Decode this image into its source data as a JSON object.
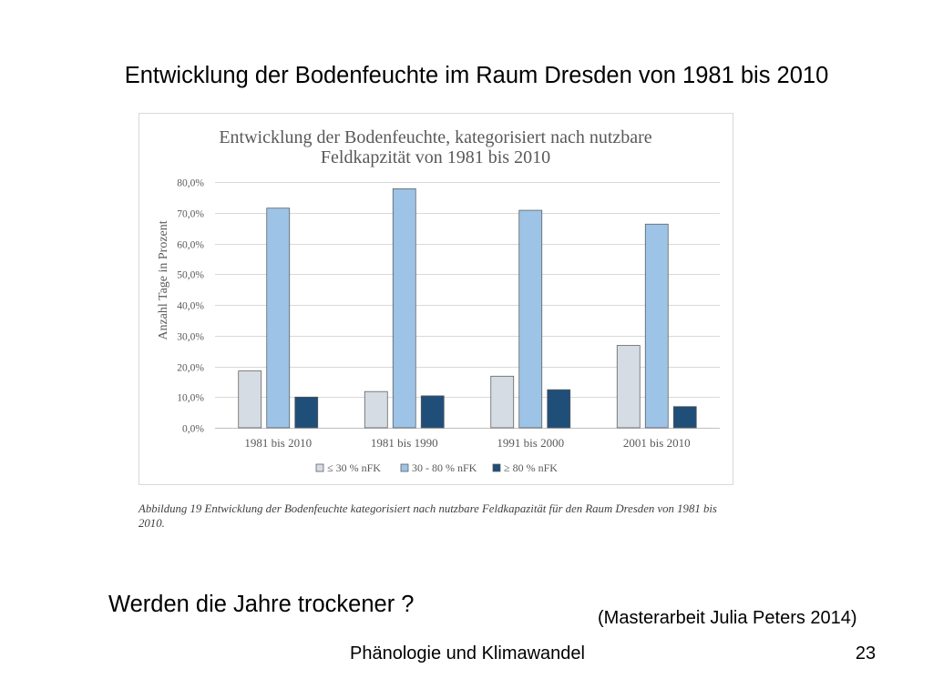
{
  "slide": {
    "title": "Entwicklung der Bodenfeuchte im Raum Dresden von 1981 bis 2010",
    "figure_caption_lines": [
      "Abbildung 19 Entwicklung der Bodenfeuchte kategorisiert nach nutzbare Feldkapazität für den Raum Dresden von 1981 bis",
      "2010."
    ],
    "question": "Werden die Jahre trockener ?",
    "source": "(Masterarbeit Julia Peters 2014)",
    "footer": "Phänologie und Klimawandel",
    "page_number": "23"
  },
  "chart_data": {
    "type": "bar",
    "title_lines": [
      "Entwicklung der Bodenfeuchte, kategorisiert nach nutzbare",
      "Feldkapzität von 1981 bis 2010"
    ],
    "xlabel": "",
    "ylabel": "Anzahl Tage in Prozent",
    "categories": [
      "1981 bis 2010",
      "1981 bis 1990",
      "1991 bis 2000",
      "2001 bis 2010"
    ],
    "series": [
      {
        "name": "≤ 30 % nFK",
        "values": [
          18.5,
          11.8,
          16.8,
          26.8
        ],
        "color": "#d6dce4"
      },
      {
        "name": "30 - 80 % nFK",
        "values": [
          71.5,
          77.8,
          70.8,
          66.3
        ],
        "color": "#9dc3e6"
      },
      {
        "name": "≥ 80 % nFK",
        "values": [
          10.0,
          10.4,
          12.4,
          6.9
        ],
        "color": "#1f4e79"
      }
    ],
    "ylim": [
      0,
      80
    ],
    "yticks": [
      0,
      10,
      20,
      30,
      40,
      50,
      60,
      70,
      80
    ],
    "ytick_labels": [
      "0,0%",
      "10,0%",
      "20,0%",
      "30,0%",
      "40,0%",
      "50,0%",
      "60,0%",
      "70,0%",
      "80,0%"
    ],
    "grid": true,
    "legend": "bottom",
    "bar_outline": "#595959"
  }
}
